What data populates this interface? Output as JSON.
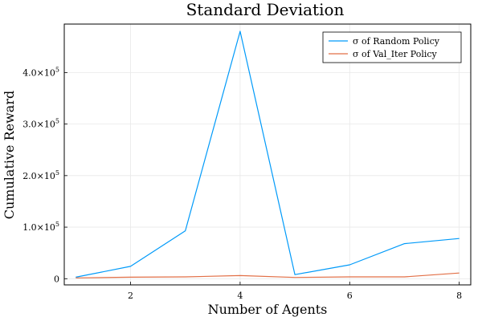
{
  "chart_data": {
    "type": "line",
    "title": "Standard Deviation",
    "xlabel": "Number of Agents",
    "ylabel": "Cumulative Reward",
    "x": [
      1,
      2,
      3,
      4,
      5,
      6,
      7,
      8
    ],
    "series": [
      {
        "name": "σ of Random Policy",
        "color": "#009af9",
        "values": [
          3000,
          24000,
          93000,
          480000,
          8000,
          27000,
          68000,
          78000
        ]
      },
      {
        "name": "σ of Val_Iter Policy",
        "color": "#e26f46",
        "values": [
          1500,
          3000,
          3500,
          6000,
          2500,
          3500,
          3500,
          11000
        ]
      }
    ],
    "xlim": [
      0.79,
      8.21
    ],
    "ylim": [
      -12000,
      494000
    ],
    "xticks": [
      2,
      4,
      6,
      8
    ],
    "yticks": [
      {
        "value": 0,
        "mantissa": "0",
        "exponent": ""
      },
      {
        "value": 100000,
        "mantissa": "1.0×10",
        "exponent": "5"
      },
      {
        "value": 200000,
        "mantissa": "2.0×10",
        "exponent": "5"
      },
      {
        "value": 300000,
        "mantissa": "3.0×10",
        "exponent": "5"
      },
      {
        "value": 400000,
        "mantissa": "4.0×10",
        "exponent": "5"
      }
    ],
    "grid": true,
    "legend_position": "top-right"
  }
}
